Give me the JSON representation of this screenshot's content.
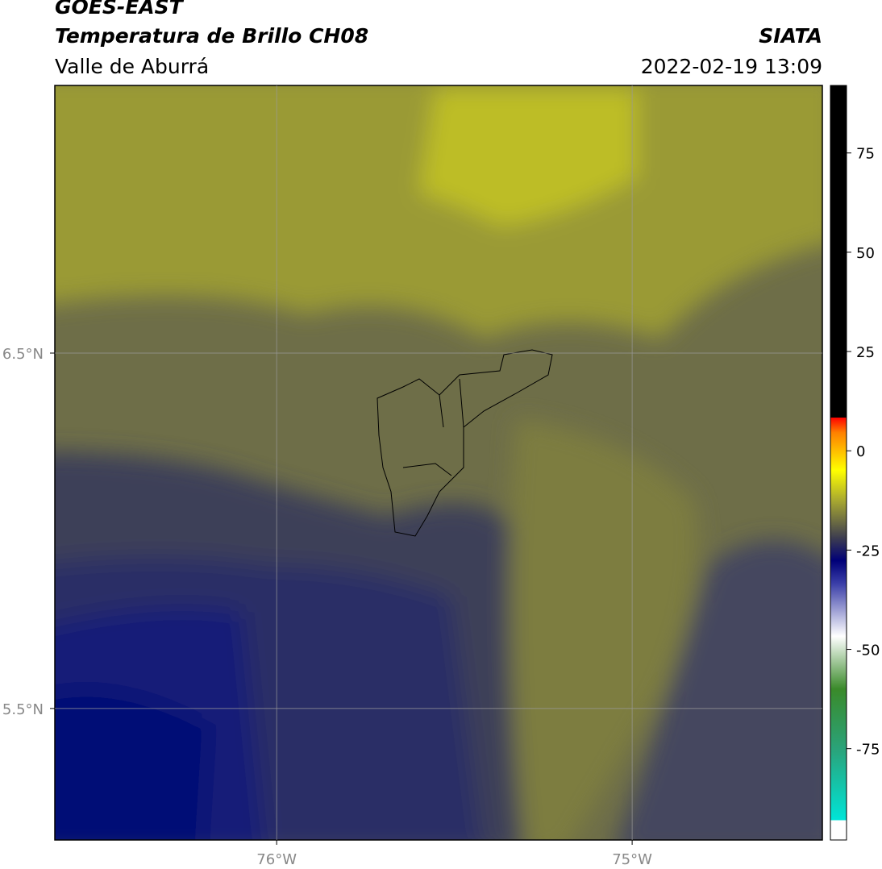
{
  "header": {
    "title": "GOES-EAST",
    "subtitle": "Temperatura de Brillo CH08",
    "region": "Valle de Aburrá",
    "source": "SIATA",
    "datetime": "2022-02-19 13:09"
  },
  "map": {
    "latlim": [
      5.13,
      7.253
    ],
    "lonlim": [
      -76.624,
      -74.465
    ],
    "lat_ticks": [
      {
        "value": 6.5,
        "label": "6.5°N"
      },
      {
        "value": 5.5,
        "label": "5.5°N"
      }
    ],
    "lon_ticks": [
      {
        "value": -76,
        "label": "76°W"
      },
      {
        "value": -75,
        "label": "75°W"
      }
    ]
  },
  "colorbar": {
    "lim": [
      -98,
      92
    ],
    "ticks": [
      75,
      50,
      25,
      0,
      -25,
      -50,
      -75
    ]
  }
}
